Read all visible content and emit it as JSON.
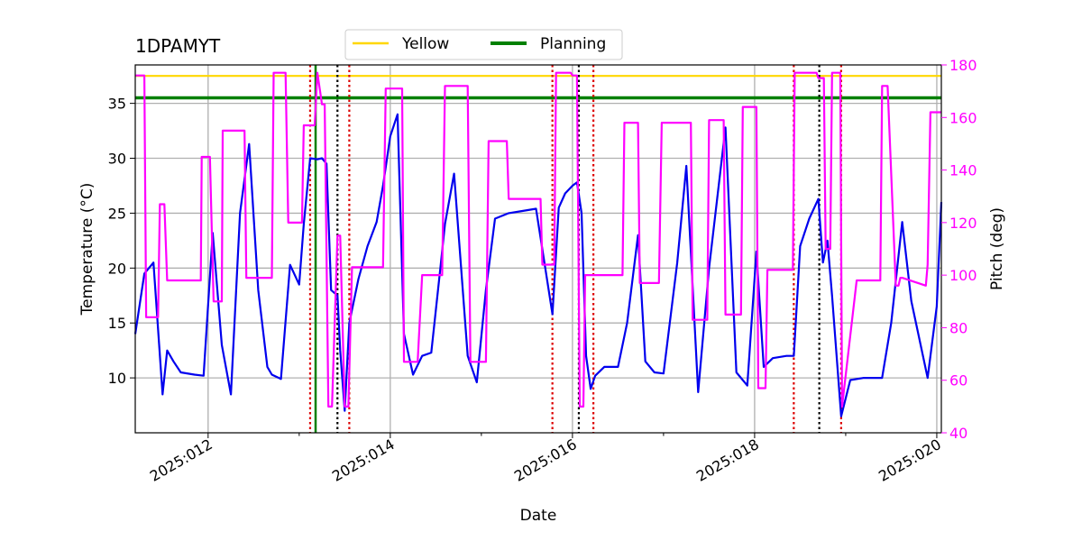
{
  "chart_data": {
    "type": "line",
    "title": "1DPAMYT",
    "xlabel": "Date",
    "ylabel_left": "Temperature ($^\\circ$C)",
    "ylabel_right": "Pitch (deg)",
    "ylabel_left_display": "Temperature (°C)",
    "xlim": [
      11.2,
      20.05
    ],
    "ylim_left": [
      5.0,
      38.5
    ],
    "ylim_right": [
      40,
      180
    ],
    "x_ticks": [
      12,
      14,
      16,
      18,
      20
    ],
    "x_tick_labels": [
      "2025:012",
      "2025:014",
      "2025:016",
      "2025:018",
      "2025:020"
    ],
    "y_left_ticks": [
      10,
      15,
      20,
      25,
      30,
      35
    ],
    "y_right_ticks": [
      40,
      60,
      80,
      100,
      120,
      140,
      160,
      180
    ],
    "grid": true,
    "legend": {
      "placement": "top-center-outside",
      "entries": [
        {
          "label": "Yellow",
          "color": "#ffd700"
        },
        {
          "label": "Planning",
          "color": "#008000"
        }
      ]
    },
    "hlines": [
      {
        "name": "Yellow",
        "y": 37.5,
        "color": "#ffd700"
      },
      {
        "name": "Planning",
        "y": 35.5,
        "color": "#008000"
      }
    ],
    "vlines": [
      {
        "x": 13.18,
        "color": "#008000",
        "style": "solid"
      },
      {
        "x": 13.12,
        "color": "#dd0000",
        "style": "dotted"
      },
      {
        "x": 13.55,
        "color": "#dd0000",
        "style": "dotted"
      },
      {
        "x": 15.78,
        "color": "#dd0000",
        "style": "dotted"
      },
      {
        "x": 16.23,
        "color": "#dd0000",
        "style": "dotted"
      },
      {
        "x": 18.43,
        "color": "#dd0000",
        "style": "dotted"
      },
      {
        "x": 18.95,
        "color": "#dd0000",
        "style": "dotted"
      },
      {
        "x": 13.42,
        "color": "#000000",
        "style": "dotted"
      },
      {
        "x": 16.07,
        "color": "#000000",
        "style": "dotted"
      },
      {
        "x": 18.71,
        "color": "#000000",
        "style": "dotted"
      }
    ],
    "series": [
      {
        "name": "Temperature",
        "axis": "left",
        "color": "#0000ee",
        "x": [
          11.2,
          11.3,
          11.4,
          11.5,
          11.55,
          11.62,
          11.7,
          11.85,
          11.95,
          12.05,
          12.15,
          12.25,
          12.35,
          12.45,
          12.55,
          12.65,
          12.7,
          12.8,
          12.9,
          13.0,
          13.05,
          13.12,
          13.2,
          13.25,
          13.3,
          13.35,
          13.42,
          13.45,
          13.5,
          13.55,
          13.65,
          13.75,
          13.85,
          13.92,
          14.0,
          14.08,
          14.15,
          14.25,
          14.35,
          14.45,
          14.55,
          14.6,
          14.7,
          14.85,
          14.95,
          15.05,
          15.15,
          15.3,
          15.45,
          15.6,
          15.78,
          15.85,
          15.92,
          16.0,
          16.05,
          16.1,
          16.15,
          16.2,
          16.25,
          16.35,
          16.5,
          16.6,
          16.72,
          16.8,
          16.9,
          17.0,
          17.15,
          17.25,
          17.38,
          17.5,
          17.68,
          17.8,
          17.92,
          18.02,
          18.1,
          18.2,
          18.35,
          18.43,
          18.5,
          18.6,
          18.7,
          18.75,
          18.8,
          18.85,
          18.95,
          19.05,
          19.2,
          19.4,
          19.5,
          19.62,
          19.72,
          19.9,
          20.0,
          20.05
        ],
        "values": [
          14.0,
          19.5,
          20.5,
          8.5,
          12.5,
          11.5,
          10.5,
          10.3,
          10.2,
          23.2,
          13.0,
          8.5,
          25.0,
          31.3,
          18.0,
          11.0,
          10.3,
          9.9,
          20.3,
          18.5,
          24.0,
          30.0,
          29.9,
          30.0,
          29.5,
          18.0,
          17.5,
          12.5,
          7.0,
          15.0,
          19.0,
          22.0,
          24.2,
          27.5,
          32.0,
          34.0,
          14.0,
          10.3,
          12.0,
          12.3,
          20.0,
          24.0,
          28.6,
          12.0,
          9.6,
          18.0,
          24.5,
          25.0,
          25.2,
          25.4,
          15.8,
          25.5,
          26.8,
          27.5,
          27.8,
          25.0,
          12.0,
          9.0,
          10.2,
          11.0,
          11.0,
          15.0,
          23.0,
          11.5,
          10.5,
          10.4,
          20.5,
          29.3,
          8.7,
          20.0,
          32.8,
          10.5,
          9.3,
          21.5,
          11.0,
          11.8,
          12.0,
          12.0,
          22.0,
          24.5,
          26.3,
          20.5,
          22.5,
          17.5,
          6.5,
          9.8,
          10.0,
          10.0,
          15.0,
          24.2,
          17.0,
          10.0,
          16.5,
          26.0
        ]
      },
      {
        "name": "Pitch",
        "axis": "right",
        "color": "#ff00ff",
        "x": [
          11.2,
          11.25,
          11.3,
          11.32,
          11.38,
          11.45,
          11.47,
          11.52,
          11.55,
          11.75,
          11.92,
          11.93,
          12.02,
          12.06,
          12.15,
          12.16,
          12.4,
          12.42,
          12.7,
          12.72,
          12.85,
          12.88,
          13.03,
          13.05,
          13.17,
          13.2,
          13.25,
          13.28,
          13.32,
          13.36,
          13.42,
          13.45,
          13.5,
          13.54,
          13.58,
          13.6,
          13.92,
          13.95,
          14.13,
          14.15,
          14.3,
          14.35,
          14.57,
          14.6,
          14.85,
          14.88,
          15.05,
          15.08,
          15.28,
          15.3,
          15.65,
          15.67,
          15.8,
          15.82,
          15.98,
          16.0,
          16.05,
          16.08,
          16.12,
          16.14,
          16.22,
          16.26,
          16.55,
          16.57,
          16.72,
          16.74,
          16.95,
          16.98,
          17.12,
          17.3,
          17.32,
          17.48,
          17.5,
          17.66,
          17.68,
          17.85,
          17.87,
          18.02,
          18.04,
          18.12,
          18.14,
          18.42,
          18.44,
          18.68,
          18.7,
          18.76,
          18.78,
          18.83,
          18.85,
          18.94,
          18.96,
          19.12,
          19.38,
          19.4,
          19.42,
          19.46,
          19.55,
          19.58,
          19.6,
          19.62,
          19.88,
          19.9,
          19.93,
          20.05
        ],
        "values": [
          176,
          176,
          176,
          84,
          84,
          84,
          127,
          127,
          98,
          98,
          98,
          145,
          145,
          90,
          90,
          155,
          155,
          99,
          99,
          177,
          177,
          120,
          120,
          157,
          157,
          177,
          165,
          165,
          50,
          50,
          115,
          115,
          50,
          50,
          103,
          103,
          103,
          171,
          171,
          67,
          67,
          100,
          100,
          172,
          172,
          67,
          67,
          151,
          151,
          129,
          129,
          104,
          104,
          177,
          177,
          176,
          176,
          50,
          50,
          100,
          100,
          100,
          100,
          158,
          158,
          97,
          97,
          158,
          158,
          158,
          83,
          83,
          159,
          159,
          85,
          85,
          164,
          164,
          57,
          57,
          102,
          102,
          177,
          177,
          175,
          175,
          110,
          110,
          177,
          177,
          50,
          98,
          98,
          172,
          172,
          172,
          96,
          96,
          99,
          99,
          96,
          104,
          162,
          162
        ]
      }
    ]
  }
}
